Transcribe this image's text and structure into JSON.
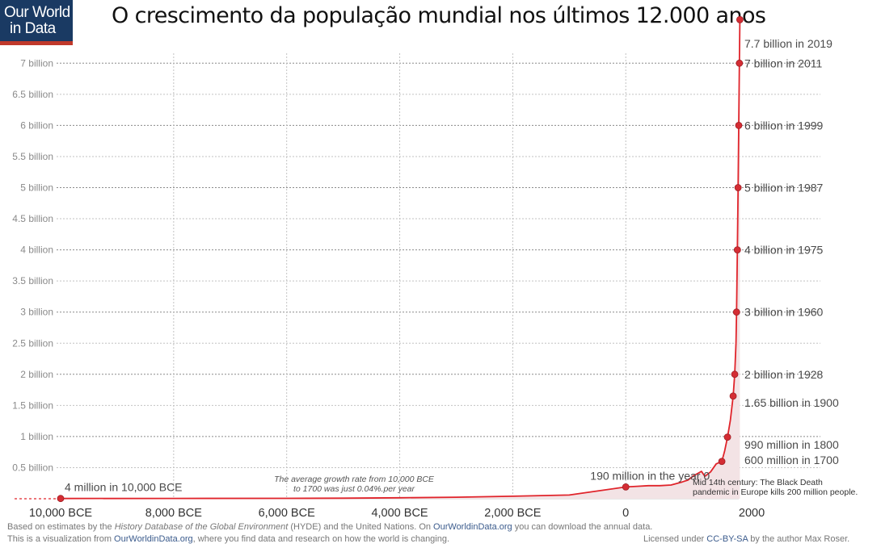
{
  "logo": {
    "line1": "Our World",
    "line2": "in Data"
  },
  "title": "O crescimento da população mundial nos últimos 12.000 anos",
  "chart_data": {
    "type": "line",
    "title": "O crescimento da população mundial nos últimos 12.000 anos",
    "xlabel": "",
    "ylabel": "",
    "xlim": [
      -10000,
      2019
    ],
    "ylim": [
      0,
      7.7
    ],
    "grid": true,
    "x_ticks": [
      {
        "value": -10000,
        "label": "10,000 BCE"
      },
      {
        "value": -8000,
        "label": "8,000 BCE"
      },
      {
        "value": -6000,
        "label": "6,000 BCE"
      },
      {
        "value": -4000,
        "label": "4,000 BCE"
      },
      {
        "value": -2000,
        "label": "2,000 BCE"
      },
      {
        "value": 0,
        "label": "0"
      },
      {
        "value": 2000,
        "label": "2000"
      }
    ],
    "y_ticks": [
      {
        "value": 0.5,
        "label": "0.5 billion"
      },
      {
        "value": 1,
        "label": "1 billion"
      },
      {
        "value": 1.5,
        "label": "1.5 billion"
      },
      {
        "value": 2,
        "label": "2 billion"
      },
      {
        "value": 2.5,
        "label": "2.5 billion"
      },
      {
        "value": 3,
        "label": "3  billion"
      },
      {
        "value": 3.5,
        "label": "3.5  billion"
      },
      {
        "value": 4,
        "label": "4 billion"
      },
      {
        "value": 4.5,
        "label": "4.5 billion"
      },
      {
        "value": 5,
        "label": "5 billion"
      },
      {
        "value": 5.5,
        "label": "5.5 billion"
      },
      {
        "value": 6,
        "label": "6 billion"
      },
      {
        "value": 6.5,
        "label": "6.5 billion"
      },
      {
        "value": 7,
        "label": "7 billion"
      }
    ],
    "series": [
      {
        "color": "#e0242b",
        "x": [
          -10000,
          -8000,
          -6000,
          -5000,
          -4000,
          -3000,
          -2000,
          -1000,
          0,
          200,
          400,
          600,
          800,
          1000,
          1100,
          1200,
          1300,
          1340,
          1400,
          1500,
          1600,
          1700,
          1750,
          1800,
          1850,
          1900,
          1928,
          1950,
          1960,
          1975,
          1987,
          1999,
          2011,
          2019
        ],
        "y": [
          0.004,
          0.005,
          0.007,
          0.009,
          0.015,
          0.025,
          0.04,
          0.06,
          0.19,
          0.2,
          0.21,
          0.21,
          0.22,
          0.27,
          0.3,
          0.37,
          0.42,
          0.44,
          0.36,
          0.43,
          0.56,
          0.6,
          0.77,
          0.99,
          1.26,
          1.65,
          2.0,
          2.5,
          3.0,
          4.0,
          5.0,
          6.0,
          7.0,
          7.7
        ]
      }
    ],
    "markers": [
      {
        "x": -10000,
        "y": 0.004,
        "label": "4 million in 10,000 BCE"
      },
      {
        "x": 0,
        "y": 0.19,
        "label": "190 million in the year 0"
      },
      {
        "x": 1700,
        "y": 0.6,
        "label": "600 million in 1700"
      },
      {
        "x": 1800,
        "y": 0.99,
        "label": "990 million in 1800"
      },
      {
        "x": 1900,
        "y": 1.65,
        "label": "1.65 billion in 1900"
      },
      {
        "x": 1928,
        "y": 2.0,
        "label": "2 billion in 1928"
      },
      {
        "x": 1960,
        "y": 3.0,
        "label": "3 billion in 1960"
      },
      {
        "x": 1975,
        "y": 4.0,
        "label": "4 billion in 1975"
      },
      {
        "x": 1987,
        "y": 5.0,
        "label": "5 billion in 1987"
      },
      {
        "x": 1999,
        "y": 6.0,
        "label": "6 billion in 1999"
      },
      {
        "x": 2011,
        "y": 7.0,
        "label": "7 billion in 2011"
      },
      {
        "x": 2019,
        "y": 7.7,
        "label": "7.7 billion in 2019"
      }
    ],
    "annotations": [
      {
        "lines": [
          "The average growth rate from 10,000 BCE",
          "to 1700 was just  0.04%.per year"
        ],
        "style": "italic"
      },
      {
        "lines": [
          "Mid 14th century: The Black Death",
          "pandemic in Europe kills 200 million people."
        ],
        "style": "normal"
      }
    ]
  },
  "footer": {
    "line1_a": "Based on estimates by the ",
    "line1_italic": "History Database of the Global Environment",
    "line1_b": " (HYDE) and the United Nations. On ",
    "line1_link": "OurWorldinData.org",
    "line1_c": " you can download the annual data.",
    "line2_a": "This is a visualization from ",
    "line2_link": "OurWorldinData.org",
    "line2_b": ", where you find data and research on how the world is changing.",
    "license_a": "Licensed under ",
    "license_link": "CC-BY-SA",
    "license_b": " by the author Max Roser."
  }
}
